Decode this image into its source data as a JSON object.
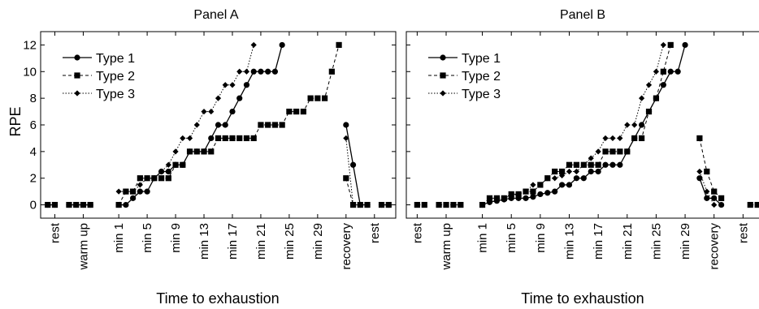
{
  "chart_data": [
    {
      "type": "line",
      "title": "Panel A",
      "xlabel": "Time to exhaustion",
      "ylabel": "RPE",
      "ylim": [
        -1,
        13
      ],
      "y_ticks": [
        0,
        2,
        4,
        6,
        8,
        10,
        12
      ],
      "x_tick_labels": [
        {
          "label": "rest",
          "x": 0
        },
        {
          "label": "warm up",
          "x": 4
        },
        {
          "label": "min 1",
          "x": 9
        },
        {
          "label": "min 5",
          "x": 13
        },
        {
          "label": "min 9",
          "x": 17
        },
        {
          "label": "min 13",
          "x": 21
        },
        {
          "label": "min 17",
          "x": 25
        },
        {
          "label": "min 21",
          "x": 29
        },
        {
          "label": "min 25",
          "x": 33
        },
        {
          "label": "min 29",
          "x": 37
        },
        {
          "label": "recovery",
          "x": 41
        },
        {
          "label": "rest",
          "x": 45
        }
      ],
      "grid": false,
      "legend": {
        "position": "top-left"
      },
      "series": [
        {
          "name": "Type 1",
          "marker": "circle",
          "dash": "solid",
          "segments": [
            [
              [
                -1,
                0
              ],
              [
                0,
                0
              ]
            ],
            [
              [
                2,
                0
              ],
              [
                3,
                0
              ],
              [
                4,
                0
              ],
              [
                5,
                0
              ]
            ],
            [
              [
                9,
                0
              ],
              [
                10,
                0
              ],
              [
                11,
                0.5
              ],
              [
                12,
                1
              ],
              [
                13,
                1
              ],
              [
                14,
                2
              ],
              [
                15,
                2.5
              ],
              [
                16,
                2.5
              ],
              [
                17,
                3
              ],
              [
                18,
                3
              ],
              [
                19,
                4
              ],
              [
                20,
                4
              ],
              [
                21,
                4
              ],
              [
                22,
                5
              ],
              [
                23,
                6
              ],
              [
                24,
                6
              ],
              [
                25,
                7
              ],
              [
                26,
                8
              ],
              [
                27,
                9
              ],
              [
                28,
                10
              ],
              [
                29,
                10
              ],
              [
                30,
                10
              ],
              [
                31,
                10
              ],
              [
                32,
                12
              ]
            ],
            [
              [
                41,
                6
              ],
              [
                42,
                3
              ],
              [
                43,
                0
              ],
              [
                44,
                0
              ]
            ],
            [
              [
                46,
                0
              ],
              [
                47,
                0
              ]
            ]
          ]
        },
        {
          "name": "Type 2",
          "marker": "square",
          "dash": "dashed",
          "segments": [
            [
              [
                -1,
                0
              ],
              [
                0,
                0
              ]
            ],
            [
              [
                2,
                0
              ],
              [
                3,
                0
              ],
              [
                4,
                0
              ],
              [
                5,
                0
              ]
            ],
            [
              [
                9,
                0
              ],
              [
                10,
                1
              ],
              [
                11,
                1
              ],
              [
                12,
                2
              ],
              [
                13,
                2
              ],
              [
                14,
                2
              ],
              [
                15,
                2
              ],
              [
                16,
                2
              ],
              [
                17,
                3
              ],
              [
                18,
                3
              ],
              [
                19,
                4
              ],
              [
                20,
                4
              ],
              [
                21,
                4
              ],
              [
                22,
                4
              ],
              [
                23,
                5
              ],
              [
                24,
                5
              ],
              [
                25,
                5
              ],
              [
                26,
                5
              ],
              [
                27,
                5
              ],
              [
                28,
                5
              ],
              [
                29,
                6
              ],
              [
                30,
                6
              ],
              [
                31,
                6
              ],
              [
                32,
                6
              ],
              [
                33,
                7
              ],
              [
                34,
                7
              ],
              [
                35,
                7
              ],
              [
                36,
                8
              ],
              [
                37,
                8
              ],
              [
                38,
                8
              ],
              [
                39,
                10
              ],
              [
                40,
                12
              ]
            ],
            [
              [
                41,
                2
              ],
              [
                42,
                0
              ],
              [
                43,
                0
              ],
              [
                44,
                0
              ]
            ],
            [
              [
                46,
                0
              ],
              [
                47,
                0
              ]
            ]
          ]
        },
        {
          "name": "Type 3",
          "marker": "diamond",
          "dash": "dotted",
          "segments": [
            [
              [
                9,
                1
              ],
              [
                10,
                1
              ],
              [
                11,
                1
              ],
              [
                12,
                1.5
              ],
              [
                13,
                2
              ],
              [
                14,
                2
              ],
              [
                15,
                2.5
              ],
              [
                16,
                3
              ],
              [
                17,
                4
              ],
              [
                18,
                5
              ],
              [
                19,
                5
              ],
              [
                20,
                6
              ],
              [
                21,
                7
              ],
              [
                22,
                7
              ],
              [
                23,
                8
              ],
              [
                24,
                9
              ],
              [
                25,
                9
              ],
              [
                26,
                10
              ],
              [
                27,
                10
              ],
              [
                28,
                12
              ]
            ],
            [
              [
                41,
                5
              ],
              [
                42,
                0
              ],
              [
                43,
                0
              ]
            ]
          ]
        }
      ]
    },
    {
      "type": "line",
      "title": "Panel B",
      "xlabel": "Time to exhaustion",
      "ylabel": "",
      "ylim": [
        -1,
        13
      ],
      "y_ticks": [
        0,
        2,
        4,
        6,
        8,
        10,
        12
      ],
      "x_tick_labels": [
        {
          "label": "rest",
          "x": 0
        },
        {
          "label": "warm up",
          "x": 4
        },
        {
          "label": "min 1",
          "x": 9
        },
        {
          "label": "min 5",
          "x": 13
        },
        {
          "label": "min 9",
          "x": 17
        },
        {
          "label": "min 13",
          "x": 21
        },
        {
          "label": "min 17",
          "x": 25
        },
        {
          "label": "min 21",
          "x": 29
        },
        {
          "label": "min 25",
          "x": 33
        },
        {
          "label": "min 29",
          "x": 37
        },
        {
          "label": "recovery",
          "x": 41
        },
        {
          "label": "rest",
          "x": 45
        }
      ],
      "grid": false,
      "legend": {
        "position": "top-left"
      },
      "series": [
        {
          "name": "Type 1",
          "marker": "circle",
          "dash": "solid",
          "segments": [
            [
              [
                9,
                0
              ],
              [
                10,
                0.2
              ],
              [
                11,
                0.3
              ],
              [
                12,
                0.4
              ],
              [
                13,
                0.5
              ],
              [
                14,
                0.5
              ],
              [
                15,
                0.5
              ],
              [
                16,
                0.6
              ],
              [
                17,
                0.8
              ],
              [
                18,
                0.9
              ],
              [
                19,
                1
              ],
              [
                20,
                1.5
              ],
              [
                21,
                1.5
              ],
              [
                22,
                2
              ],
              [
                23,
                2
              ],
              [
                24,
                2.5
              ],
              [
                25,
                2.5
              ],
              [
                26,
                3
              ],
              [
                27,
                3
              ],
              [
                28,
                3
              ],
              [
                29,
                4
              ],
              [
                30,
                5
              ],
              [
                31,
                6
              ],
              [
                32,
                7
              ],
              [
                33,
                8
              ],
              [
                34,
                9
              ],
              [
                35,
                10
              ],
              [
                36,
                10
              ],
              [
                37,
                12
              ]
            ],
            [
              [
                39,
                2
              ],
              [
                40,
                0.5
              ],
              [
                41,
                0.5
              ],
              [
                42,
                0
              ]
            ]
          ]
        },
        {
          "name": "Type 2",
          "marker": "square",
          "dash": "dashed",
          "segments": [
            [
              [
                0,
                0
              ],
              [
                1,
                0
              ]
            ],
            [
              [
                3,
                0
              ],
              [
                4,
                0
              ],
              [
                5,
                0
              ],
              [
                6,
                0
              ]
            ],
            [
              [
                9,
                0
              ],
              [
                10,
                0.5
              ],
              [
                11,
                0.5
              ],
              [
                12,
                0.5
              ],
              [
                13,
                0.8
              ],
              [
                14,
                0.8
              ],
              [
                15,
                1
              ],
              [
                16,
                1
              ],
              [
                17,
                1.5
              ],
              [
                18,
                2
              ],
              [
                19,
                2.5
              ],
              [
                20,
                2.5
              ],
              [
                21,
                3
              ],
              [
                22,
                3
              ],
              [
                23,
                3
              ],
              [
                24,
                3
              ],
              [
                25,
                3
              ],
              [
                26,
                4
              ],
              [
                27,
                4
              ],
              [
                28,
                4
              ],
              [
                29,
                4
              ],
              [
                30,
                5
              ],
              [
                31,
                5
              ],
              [
                32,
                7
              ],
              [
                33,
                8
              ],
              [
                34,
                10
              ],
              [
                35,
                12
              ]
            ],
            [
              [
                39,
                5
              ],
              [
                40,
                2.5
              ],
              [
                41,
                1
              ],
              [
                42,
                0.5
              ]
            ],
            [
              [
                46,
                0
              ],
              [
                47,
                0
              ]
            ]
          ]
        },
        {
          "name": "Type 3",
          "marker": "diamond",
          "dash": "dotted",
          "segments": [
            [
              [
                9,
                0
              ],
              [
                10,
                0.2
              ],
              [
                11,
                0.3
              ],
              [
                12,
                0.5
              ],
              [
                13,
                0.7
              ],
              [
                14,
                0.8
              ],
              [
                15,
                1
              ],
              [
                16,
                1.5
              ],
              [
                17,
                1.5
              ],
              [
                18,
                2
              ],
              [
                19,
                2
              ],
              [
                20,
                2.2
              ],
              [
                21,
                2.5
              ],
              [
                22,
                2.5
              ],
              [
                23,
                3
              ],
              [
                24,
                3.5
              ],
              [
                25,
                4
              ],
              [
                26,
                5
              ],
              [
                27,
                5
              ],
              [
                28,
                5
              ],
              [
                29,
                6
              ],
              [
                30,
                6
              ],
              [
                31,
                8
              ],
              [
                32,
                9
              ],
              [
                33,
                10
              ],
              [
                34,
                12
              ]
            ],
            [
              [
                39,
                2.5
              ],
              [
                40,
                1
              ],
              [
                41,
                0
              ]
            ]
          ]
        }
      ]
    }
  ]
}
